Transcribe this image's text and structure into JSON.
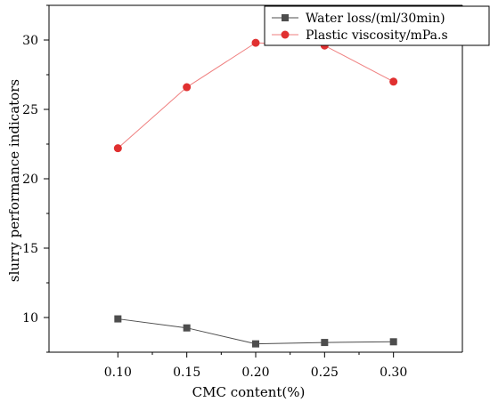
{
  "chart_data": {
    "type": "line",
    "title": "",
    "xlabel": "CMC content(%)",
    "ylabel": "slurry performance indicators",
    "x": [
      0.1,
      0.15,
      0.2,
      0.25,
      0.3
    ],
    "x_tick_labels": [
      "0.10",
      "0.15",
      "0.20",
      "0.25",
      "0.30"
    ],
    "xlim": [
      0.05,
      0.35
    ],
    "ylim": [
      7.5,
      32.5
    ],
    "y_ticks": [
      10,
      15,
      20,
      25,
      30
    ],
    "y_tick_labels": [
      "10",
      "15",
      "20",
      "25",
      "30"
    ],
    "grid": false,
    "legend_position": "top-right",
    "series": [
      {
        "name": "Water loss/(ml/30min)",
        "values": [
          9.9,
          9.25,
          8.1,
          8.2,
          8.25
        ],
        "color": "#4d4d4d",
        "line_color": "#4d4d4d",
        "marker": "square"
      },
      {
        "name": "Plastic viscosity/mPa.s",
        "values": [
          22.2,
          26.6,
          29.8,
          29.6,
          27.0
        ],
        "color": "#e03030",
        "line_color": "#ef7f7f",
        "marker": "circle"
      }
    ]
  }
}
